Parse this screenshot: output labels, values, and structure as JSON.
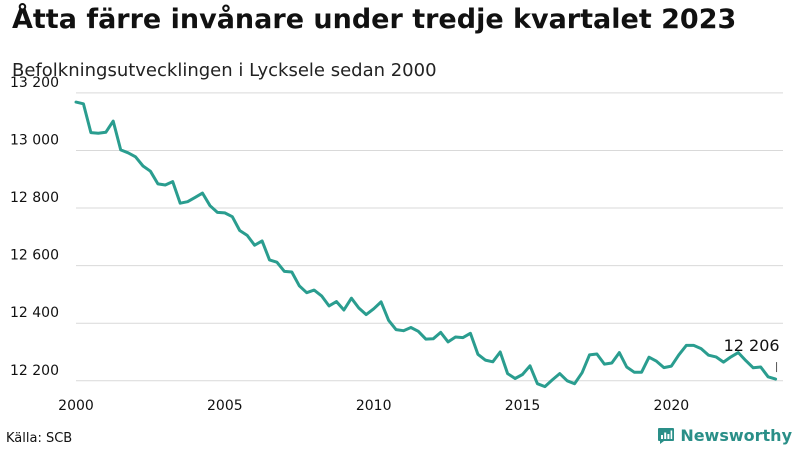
{
  "header": {
    "title": "Åtta färre invånare under tredje kvartalet 2023",
    "subtitle": "Befolkningsutvecklingen i Lycksele sedan 2000"
  },
  "footer": {
    "source": "Källa: SCB",
    "brand": "Newsworthy",
    "brand_icon": "newsworthy-logo-icon",
    "brand_color": "#2a8f88"
  },
  "chart_data": {
    "type": "line",
    "title": "Åtta färre invånare under tredje kvartalet 2023",
    "subtitle": "Befolkningsutvecklingen i Lycksele sedan 2000",
    "xlabel": "",
    "ylabel": "",
    "xlim": [
      2000,
      2023.75
    ],
    "ylim": [
      12175,
      13210
    ],
    "x_ticks": [
      2000,
      2005,
      2010,
      2015,
      2020
    ],
    "x_tick_labels": [
      "2000",
      "2005",
      "2010",
      "2015",
      "2020"
    ],
    "y_ticks": [
      12200,
      12400,
      12600,
      12800,
      13000,
      13200
    ],
    "y_tick_labels": [
      "12 200",
      "12 400",
      "12 600",
      "12 800",
      "13 000",
      "13 200"
    ],
    "grid": "horizontal",
    "line_color": "#2a9d8f",
    "series": [
      {
        "x": [
          2000.0,
          2000.25,
          2000.5,
          2000.75,
          2001.0,
          2001.25,
          2001.5,
          2001.75,
          2002.0,
          2002.25,
          2002.5,
          2002.75,
          2003.0,
          2003.25,
          2003.5,
          2003.75,
          2004.0,
          2004.25,
          2004.5,
          2004.75,
          2005.0,
          2005.25,
          2005.5,
          2005.75,
          2006.0,
          2006.25,
          2006.5,
          2006.75,
          2007.0,
          2007.25,
          2007.5,
          2007.75,
          2008.0,
          2008.25,
          2008.5,
          2008.75,
          2009.0,
          2009.25,
          2009.5,
          2009.75,
          2010.0,
          2010.25,
          2010.5,
          2010.75,
          2011.0,
          2011.25,
          2011.5,
          2011.75,
          2012.0,
          2012.25,
          2012.5,
          2012.75,
          2013.0,
          2013.25,
          2013.5,
          2013.75,
          2014.0,
          2014.25,
          2014.5,
          2014.75,
          2015.0,
          2015.25,
          2015.5,
          2015.75,
          2016.0,
          2016.25,
          2016.5,
          2016.75,
          2017.0,
          2017.25,
          2017.5,
          2017.75,
          2018.0,
          2018.25,
          2018.5,
          2018.75,
          2019.0,
          2019.25,
          2019.5,
          2019.75,
          2020.0,
          2020.25,
          2020.5,
          2020.75,
          2021.0,
          2021.25,
          2021.5,
          2021.75,
          2022.0,
          2022.25,
          2022.5,
          2022.75,
          2023.0,
          2023.25,
          2023.5
        ],
        "values": [
          13168,
          13162,
          13062,
          13060,
          13063,
          13102,
          13002,
          12992,
          12978,
          12946,
          12928,
          12884,
          12880,
          12892,
          12817,
          12822,
          12837,
          12852,
          12808,
          12785,
          12783,
          12770,
          12722,
          12705,
          12671,
          12686,
          12620,
          12612,
          12580,
          12578,
          12530,
          12506,
          12515,
          12495,
          12460,
          12475,
          12446,
          12487,
          12453,
          12430,
          12450,
          12474,
          12410,
          12378,
          12374,
          12385,
          12372,
          12345,
          12346,
          12368,
          12335,
          12352,
          12350,
          12365,
          12292,
          12272,
          12266,
          12300,
          12225,
          12208,
          12222,
          12252,
          12190,
          12180,
          12203,
          12225,
          12200,
          12190,
          12228,
          12290,
          12293,
          12258,
          12262,
          12298,
          12248,
          12230,
          12230,
          12282,
          12268,
          12246,
          12251,
          12290,
          12323,
          12323,
          12312,
          12289,
          12283,
          12265,
          12283,
          12298,
          12270,
          12245,
          12248,
          12214,
          12206
        ]
      }
    ],
    "annotations": [
      {
        "x": 2023.5,
        "y": 12206,
        "text": "12 206"
      }
    ]
  }
}
